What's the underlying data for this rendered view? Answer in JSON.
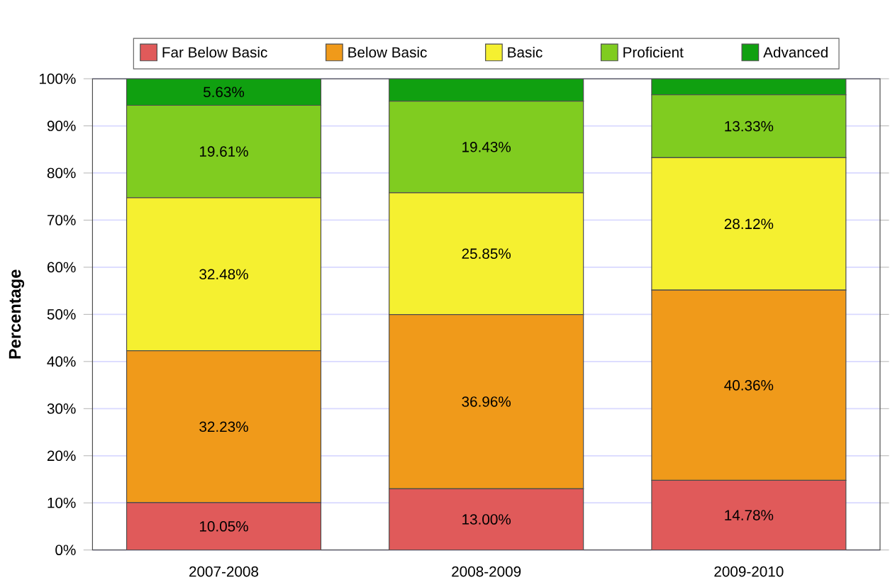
{
  "chart_data": {
    "type": "bar",
    "stacked": true,
    "ylabel": "Percentage",
    "categories": [
      "2007-2008",
      "2008-2009",
      "2009-2010"
    ],
    "series": [
      {
        "name": "Far Below Basic",
        "color": "#e05a5a",
        "values": [
          10.05,
          13.0,
          14.78
        ],
        "value_labels": [
          "10.05%",
          "13.00%",
          "14.78%"
        ]
      },
      {
        "name": "Below Basic",
        "color": "#f09a1a",
        "values": [
          32.23,
          36.96,
          40.36
        ],
        "value_labels": [
          "32.23%",
          "36.96%",
          "40.36%"
        ]
      },
      {
        "name": "Basic",
        "color": "#f5f030",
        "values": [
          32.48,
          25.85,
          28.12
        ],
        "value_labels": [
          "32.48%",
          "25.85%",
          "28.12%"
        ]
      },
      {
        "name": "Proficient",
        "color": "#80cc20",
        "values": [
          19.61,
          19.43,
          13.33
        ],
        "value_labels": [
          "19.61%",
          "19.43%",
          "13.33%"
        ]
      },
      {
        "name": "Advanced",
        "color": "#10a010",
        "values": [
          5.63,
          4.76,
          3.41
        ],
        "value_labels": [
          "5.63%",
          null,
          null
        ]
      }
    ],
    "ylim": [
      0,
      100
    ],
    "yticks": [
      {
        "value": 0,
        "label": "0%"
      },
      {
        "value": 10,
        "label": "10%"
      },
      {
        "value": 20,
        "label": "20%"
      },
      {
        "value": 30,
        "label": "30%"
      },
      {
        "value": 40,
        "label": "40%"
      },
      {
        "value": 50,
        "label": "50%"
      },
      {
        "value": 60,
        "label": "60%"
      },
      {
        "value": 70,
        "label": "70%"
      },
      {
        "value": 80,
        "label": "80%"
      },
      {
        "value": 90,
        "label": "90%"
      },
      {
        "value": 100,
        "label": "100%"
      }
    ],
    "grid": "y",
    "legend": "top"
  }
}
